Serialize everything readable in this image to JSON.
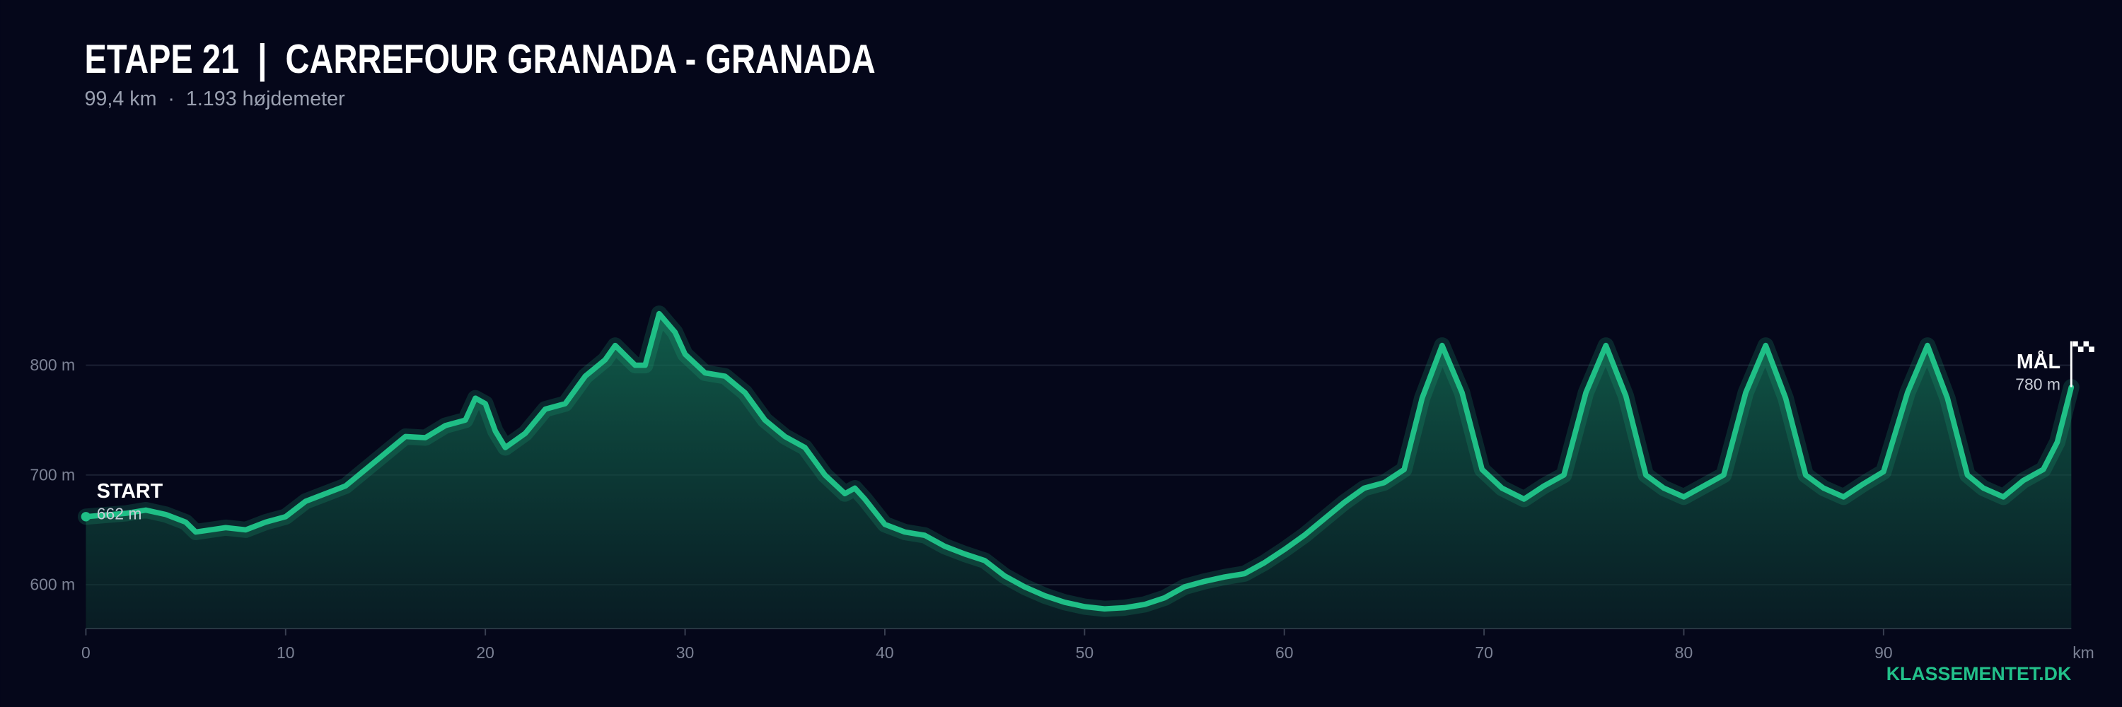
{
  "chart_data": {
    "type": "area",
    "title": "ETAPE 21  |  CARREFOUR GRANADA - GRANADA",
    "subtitle": "99,4 km  ·  1.193 højdemeter",
    "x_label": "km",
    "brand": "KLASSEMENTET.DK",
    "color": "#1fbf86",
    "grid": true,
    "xlim": [
      0,
      99.4
    ],
    "ylim": [
      560,
      900
    ],
    "xticks": [
      0,
      10,
      20,
      30,
      40,
      50,
      60,
      70,
      80,
      90
    ],
    "yticks": [
      {
        "value": 600,
        "label": "600 m"
      },
      {
        "value": 700,
        "label": "700 m"
      },
      {
        "value": 800,
        "label": "800 m"
      }
    ],
    "x": [
      0,
      2,
      3,
      4,
      5,
      5.5,
      7,
      8,
      9,
      10,
      11,
      12,
      13,
      14,
      15,
      16,
      17,
      18,
      19,
      19.5,
      20,
      20.5,
      21,
      22,
      23,
      24,
      25,
      26,
      26.5,
      27.5,
      28,
      28.7,
      29.5,
      30,
      31,
      32,
      33,
      34,
      35,
      36,
      37,
      38,
      38.5,
      39,
      40,
      41,
      42,
      43,
      44,
      45,
      46,
      47,
      48,
      49,
      50,
      51,
      52,
      53,
      54,
      55,
      56,
      57,
      58,
      59,
      60,
      61,
      62,
      63,
      64,
      65,
      66,
      66.9,
      67.9,
      68.9,
      69.9,
      70.9,
      72,
      73,
      74,
      75.1,
      76.1,
      77.1,
      78.1,
      79,
      80,
      81,
      82,
      83.1,
      84.1,
      85.1,
      86.1,
      87,
      88,
      89,
      90,
      91.2,
      92.2,
      93.2,
      94.2,
      95,
      96,
      97,
      98,
      98.7,
      99.4
    ],
    "values": [
      662,
      665,
      668,
      664,
      657,
      648,
      652,
      650,
      657,
      662,
      676,
      683,
      690,
      705,
      720,
      735,
      734,
      745,
      750,
      770,
      765,
      740,
      725,
      738,
      760,
      765,
      790,
      805,
      818,
      800,
      800,
      847,
      830,
      810,
      793,
      790,
      775,
      750,
      735,
      725,
      700,
      683,
      688,
      678,
      655,
      648,
      645,
      635,
      628,
      622,
      608,
      598,
      590,
      584,
      580,
      578,
      579,
      582,
      588,
      598,
      603,
      607,
      610,
      620,
      632,
      645,
      660,
      675,
      688,
      693,
      705,
      770,
      818,
      775,
      705,
      688,
      678,
      690,
      700,
      775,
      818,
      772,
      700,
      688,
      680,
      690,
      700,
      775,
      818,
      770,
      700,
      688,
      680,
      692,
      703,
      775,
      818,
      770,
      700,
      688,
      680,
      695,
      705,
      730,
      780
    ],
    "annotations": [
      {
        "label": "START",
        "text": "662 m"
      },
      {
        "label": "MÅL",
        "text": "780 m"
      }
    ]
  }
}
